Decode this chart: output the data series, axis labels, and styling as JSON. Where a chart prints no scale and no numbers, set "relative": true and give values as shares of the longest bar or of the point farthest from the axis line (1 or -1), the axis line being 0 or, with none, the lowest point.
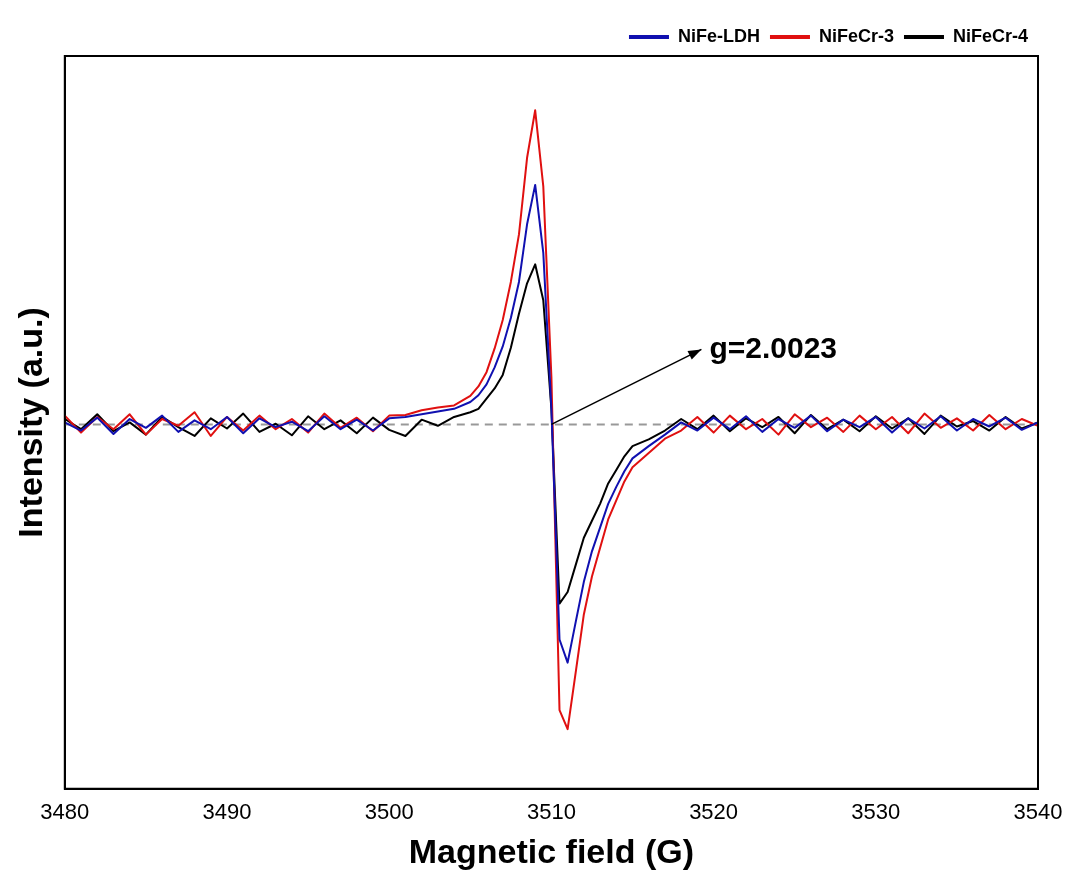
{
  "chart_data": {
    "type": "line",
    "relative": true,
    "xlabel": "Magnetic field (G)",
    "ylabel": "Intensity (a.u.)",
    "xlim": [
      3480,
      3540
    ],
    "xticks": [
      3480,
      3490,
      3500,
      3510,
      3520,
      3530,
      3540
    ],
    "grid": false,
    "legend": "top right",
    "marker": "none",
    "line_style": "solid",
    "x": [
      3480,
      3481,
      3482,
      3483,
      3484,
      3485,
      3486,
      3487,
      3488,
      3489,
      3490,
      3491,
      3492,
      3493,
      3494,
      3495,
      3496,
      3497,
      3498,
      3499,
      3500,
      3501,
      3502,
      3503,
      3504,
      3505,
      3505.5,
      3506,
      3506.5,
      3507,
      3507.5,
      3508,
      3508.5,
      3509,
      3509.5,
      3510,
      3510.5,
      3511,
      3511.5,
      3512,
      3512.5,
      3513,
      3513.5,
      3514,
      3514.5,
      3515,
      3516,
      3517,
      3518,
      3519,
      3520,
      3521,
      3522,
      3523,
      3524,
      3525,
      3526,
      3527,
      3528,
      3529,
      3530,
      3531,
      3532,
      3533,
      3534,
      3535,
      3536,
      3537,
      3538,
      3539,
      3540
    ],
    "series": [
      {
        "name": "NiFe-LDH",
        "color": "#1010b0",
        "values": [
          0.54,
          0.528,
          0.547,
          0.523,
          0.545,
          0.532,
          0.55,
          0.526,
          0.543,
          0.53,
          0.548,
          0.524,
          0.546,
          0.533,
          0.541,
          0.527,
          0.549,
          0.53,
          0.544,
          0.528,
          0.546,
          0.548,
          0.552,
          0.556,
          0.56,
          0.57,
          0.58,
          0.596,
          0.621,
          0.652,
          0.694,
          0.747,
          0.832,
          0.89,
          0.79,
          0.56,
          0.22,
          0.186,
          0.246,
          0.305,
          0.35,
          0.385,
          0.42,
          0.445,
          0.468,
          0.487,
          0.505,
          0.522,
          0.54,
          0.528,
          0.547,
          0.53,
          0.549,
          0.526,
          0.545,
          0.532,
          0.55,
          0.527,
          0.544,
          0.533,
          0.548,
          0.525,
          0.546,
          0.531,
          0.549,
          0.528,
          0.545,
          0.534,
          0.547,
          0.529,
          0.54
        ]
      },
      {
        "name": "NiFeCr-3",
        "color": "#e01010",
        "values": [
          0.55,
          0.525,
          0.548,
          0.53,
          0.552,
          0.522,
          0.545,
          0.535,
          0.555,
          0.52,
          0.548,
          0.528,
          0.55,
          0.53,
          0.545,
          0.525,
          0.553,
          0.532,
          0.547,
          0.527,
          0.55,
          0.551,
          0.558,
          0.562,
          0.565,
          0.579,
          0.593,
          0.614,
          0.649,
          0.691,
          0.747,
          0.817,
          0.93,
          1.0,
          0.888,
          0.607,
          0.116,
          0.088,
          0.172,
          0.257,
          0.313,
          0.355,
          0.397,
          0.425,
          0.453,
          0.474,
          0.495,
          0.516,
          0.528,
          0.548,
          0.525,
          0.55,
          0.53,
          0.545,
          0.522,
          0.552,
          0.533,
          0.547,
          0.526,
          0.55,
          0.53,
          0.548,
          0.524,
          0.553,
          0.532,
          0.546,
          0.528,
          0.551,
          0.53,
          0.545,
          0.535
        ]
      },
      {
        "name": "NiFeCr-4",
        "color": "#000000",
        "values": [
          0.545,
          0.53,
          0.552,
          0.527,
          0.54,
          0.522,
          0.548,
          0.533,
          0.52,
          0.546,
          0.531,
          0.553,
          0.526,
          0.538,
          0.521,
          0.549,
          0.53,
          0.543,
          0.524,
          0.547,
          0.529,
          0.52,
          0.544,
          0.535,
          0.548,
          0.555,
          0.56,
          0.575,
          0.59,
          0.61,
          0.65,
          0.7,
          0.745,
          0.773,
          0.72,
          0.56,
          0.273,
          0.29,
          0.33,
          0.37,
          0.395,
          0.42,
          0.45,
          0.47,
          0.49,
          0.505,
          0.515,
          0.528,
          0.545,
          0.53,
          0.55,
          0.527,
          0.546,
          0.533,
          0.548,
          0.524,
          0.551,
          0.53,
          0.544,
          0.527,
          0.549,
          0.531,
          0.546,
          0.523,
          0.55,
          0.534,
          0.542,
          0.528,
          0.548,
          0.531,
          0.54
        ]
      }
    ],
    "ref_lines": [
      {
        "axis": "y",
        "value": 0.537,
        "color": "#999999",
        "line_style": "dashed"
      }
    ],
    "annotations": [
      {
        "text": "g=2.0023",
        "x": 3510,
        "y": 0.537
      }
    ]
  }
}
